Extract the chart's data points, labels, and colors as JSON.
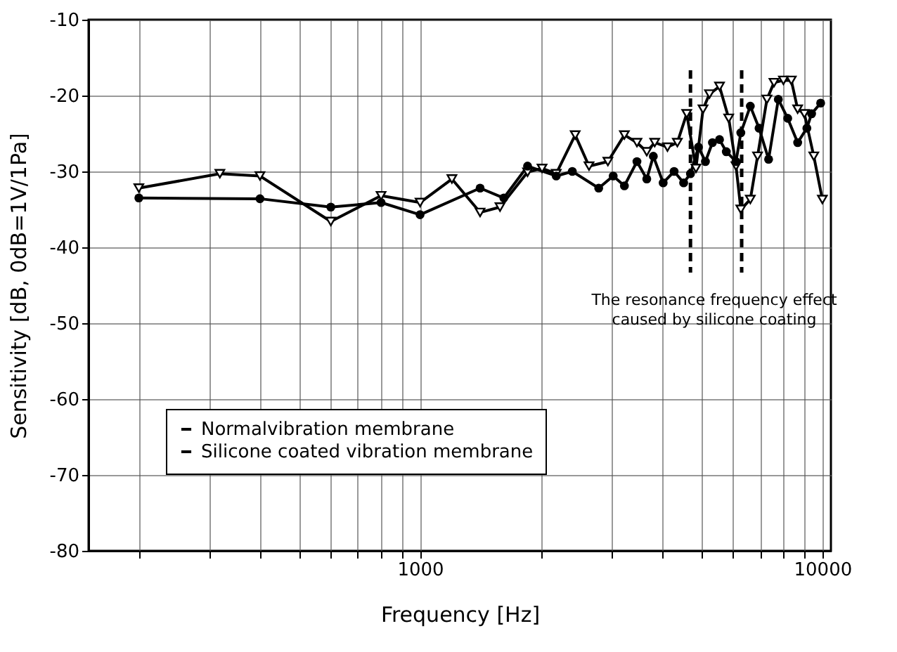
{
  "chart_data": {
    "type": "line",
    "xlabel": "Frequency [Hz]",
    "ylabel": "Sensitivity [dB, 0dB=1V/1Pa]",
    "log": "x",
    "xlim": [
      150,
      10500
    ],
    "xticks": [
      {
        "value": 200,
        "label": null
      },
      {
        "value": 300,
        "label": null
      },
      {
        "value": 400,
        "label": null
      },
      {
        "value": 500,
        "label": null
      },
      {
        "value": 600,
        "label": null
      },
      {
        "value": 700,
        "label": null
      },
      {
        "value": 800,
        "label": null
      },
      {
        "value": 900,
        "label": null
      },
      1000,
      {
        "value": 2000,
        "label": null
      },
      {
        "value": 3000,
        "label": null
      },
      {
        "value": 4000,
        "label": null
      },
      {
        "value": 5000,
        "label": null
      },
      {
        "value": 6000,
        "label": null
      },
      {
        "value": 7000,
        "label": null
      },
      {
        "value": 8000,
        "label": null
      },
      {
        "value": 9000,
        "label": null
      },
      10000
    ],
    "ylim": [
      -80,
      -10
    ],
    "yticks": [
      -80,
      -70,
      -60,
      -50,
      -40,
      -30,
      -20,
      -10
    ],
    "grid": true,
    "legend": "bottom left",
    "line_style": "solid",
    "series": [
      {
        "name": "Normalvibration membrane",
        "color": "#000000",
        "marker": "circle",
        "x": [
          200,
          400,
          600,
          800,
          1000,
          1410,
          1615,
          1850,
          2180,
          2390,
          2780,
          3020,
          3220,
          3460,
          3660,
          3800,
          4020,
          4280,
          4520,
          4700,
          4920,
          5120,
          5330,
          5550,
          5770,
          6100,
          6270,
          6620,
          6960,
          7350,
          7770,
          8200,
          8680,
          9150,
          9400,
          9900
        ],
        "values": [
          -33.5,
          -33.6,
          -34.7,
          -34.1,
          -35.7,
          -32.2,
          -33.5,
          -29.3,
          -30.6,
          -30,
          -32.2,
          -30.6,
          -31.9,
          -28.7,
          -31,
          -28,
          -31.5,
          -30,
          -31.5,
          -30.3,
          -26.8,
          -28.7,
          -26.2,
          -25.8,
          -27.4,
          -28.7,
          -24.9,
          -21.4,
          -24.3,
          -28.4,
          -20.5,
          -23,
          -26.2,
          -24.3,
          -22.4,
          -21
        ]
      },
      {
        "name": "Silicone coated vibration membrane",
        "color": "#000000",
        "marker": "triangle",
        "x": [
          200,
          318,
          400,
          600,
          800,
          1000,
          1200,
          1410,
          1580,
          1850,
          2010,
          2180,
          2430,
          2630,
          2930,
          3220,
          3460,
          3660,
          3830,
          4120,
          4360,
          4600,
          4850,
          5050,
          5240,
          5550,
          5850,
          6100,
          6270,
          6620,
          6900,
          7280,
          7580,
          8000,
          8370,
          8680,
          9020,
          9520,
          10000
        ],
        "values": [
          -32.2,
          -30.3,
          -30.6,
          -36.6,
          -33.2,
          -34.1,
          -31,
          -35.4,
          -34.7,
          -30.1,
          -29.6,
          -30.3,
          -25.2,
          -29.3,
          -28.7,
          -25.2,
          -26.2,
          -27.4,
          -26.2,
          -26.8,
          -26.2,
          -22.4,
          -29.6,
          -21.8,
          -19.8,
          -18.8,
          -23,
          -29.3,
          -35,
          -33.7,
          -28,
          -20.5,
          -18.3,
          -18,
          -18,
          -21.8,
          -22.4,
          -28,
          -33.7
        ]
      }
    ],
    "ref_lines": [
      {
        "axis": "x",
        "value": 4700,
        "color": "#000000",
        "line_style": "dashed"
      },
      {
        "axis": "x",
        "value": 6300,
        "color": "#000000",
        "line_style": "dashed"
      }
    ],
    "annotations": [
      "The resonance frequency effect\ncaused by silicone coating"
    ]
  }
}
